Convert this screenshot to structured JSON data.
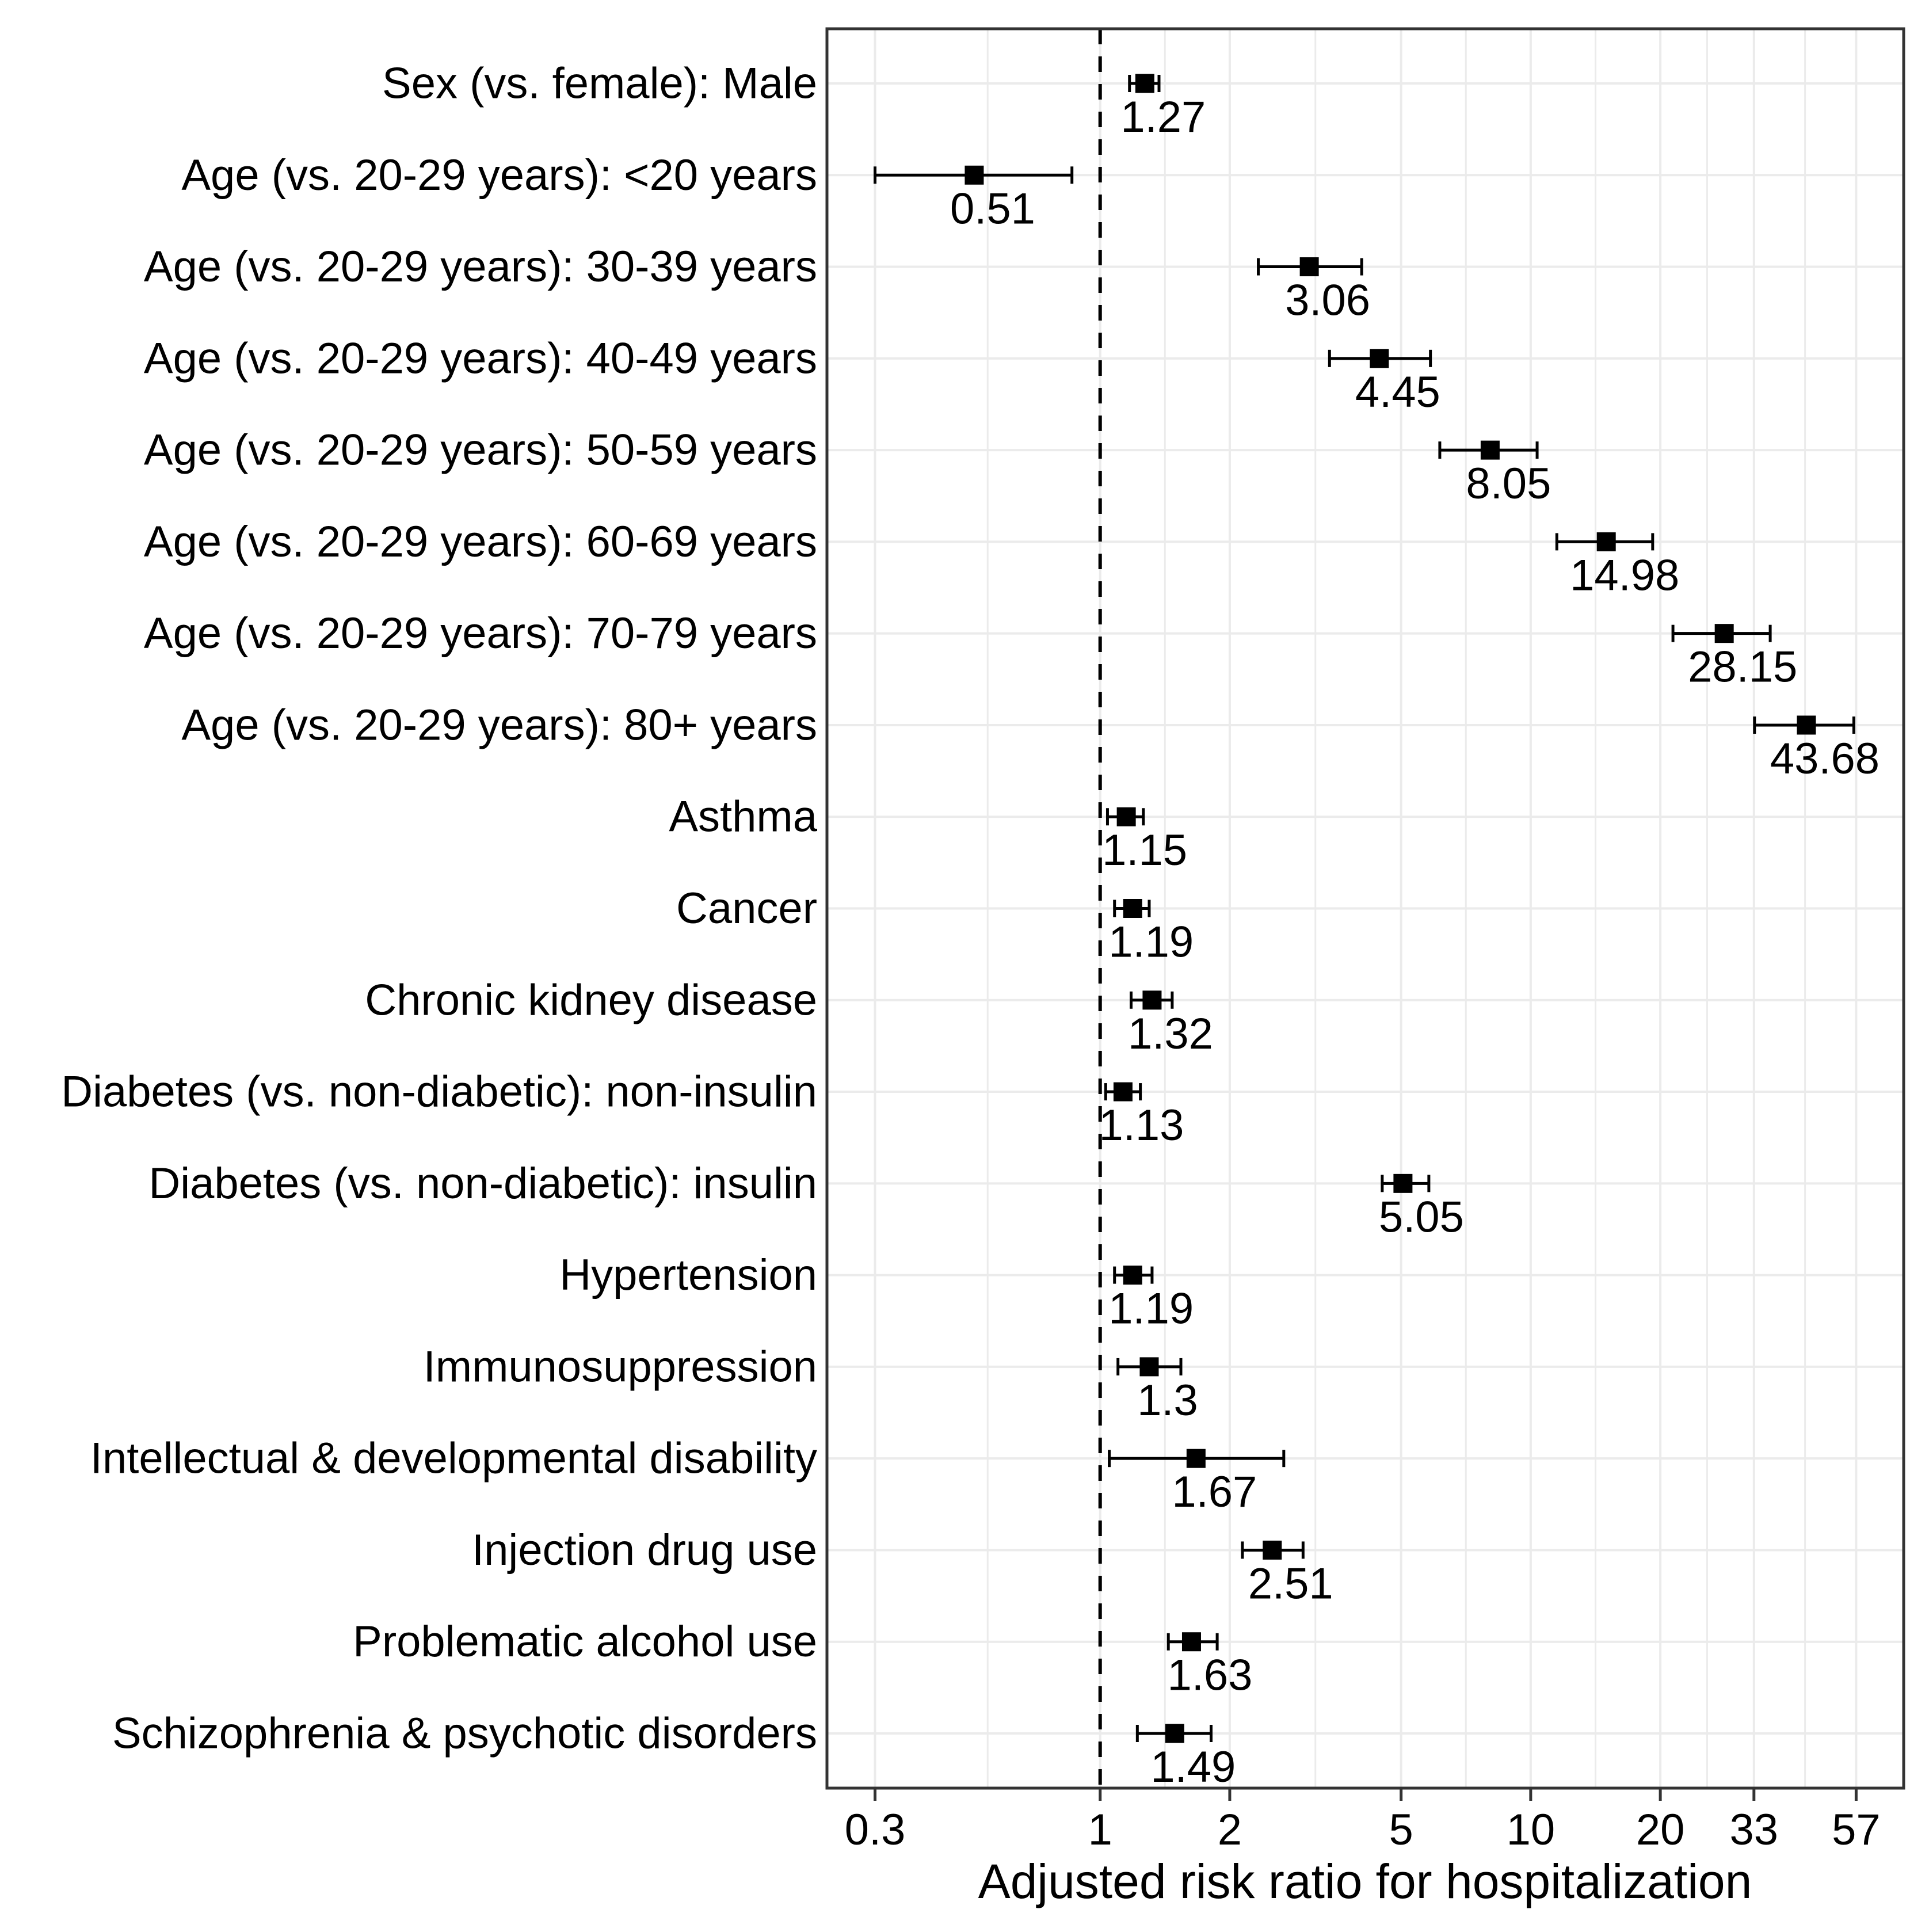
{
  "figure": {
    "background": "#ffffff"
  },
  "chart_data": {
    "type": "scatter",
    "variant": "forest-plot",
    "title": "",
    "xlabel": "Adjusted risk ratio for hospitalization",
    "ylabel": "",
    "x_scale": "log",
    "xlim": [
      0.232,
      73.5
    ],
    "x_major_ticks": [
      0.3,
      1,
      2,
      5,
      10,
      20,
      33,
      57
    ],
    "x_tick_labels": [
      "0.3",
      "1",
      "2",
      "5",
      "10",
      "20",
      "33",
      "57"
    ],
    "x_minor_gridlines": [
      0.548,
      1.414,
      3.162,
      7.071,
      14.142,
      25.69,
      43.37
    ],
    "reference_line_x": 1,
    "grid": true,
    "legend": false,
    "rows": [
      {
        "label": "Sex (vs. female): Male",
        "estimate": 1.27,
        "ci_low": 1.17,
        "ci_high": 1.37,
        "display": "1.27"
      },
      {
        "label": "Age (vs. 20-29 years): <20 years",
        "estimate": 0.51,
        "ci_low": 0.3,
        "ci_high": 0.86,
        "display": "0.51"
      },
      {
        "label": "Age (vs. 20-29 years): 30-39 years",
        "estimate": 3.06,
        "ci_low": 2.33,
        "ci_high": 4.05,
        "display": "3.06"
      },
      {
        "label": "Age (vs. 20-29 years): 40-49 years",
        "estimate": 4.45,
        "ci_low": 3.41,
        "ci_high": 5.85,
        "display": "4.45"
      },
      {
        "label": "Age (vs. 20-29 years): 50-59 years",
        "estimate": 8.05,
        "ci_low": 6.15,
        "ci_high": 10.35,
        "display": "8.05"
      },
      {
        "label": "Age (vs. 20-29 years): 60-69 years",
        "estimate": 14.98,
        "ci_low": 11.5,
        "ci_high": 19.2,
        "display": "14.98"
      },
      {
        "label": "Age (vs. 20-29 years): 70-79 years",
        "estimate": 28.15,
        "ci_low": 21.4,
        "ci_high": 36.0,
        "display": "28.15"
      },
      {
        "label": "Age (vs. 20-29 years): 80+ years",
        "estimate": 43.68,
        "ci_low": 33.1,
        "ci_high": 56.3,
        "display": "43.68"
      },
      {
        "label": "Asthma",
        "estimate": 1.15,
        "ci_low": 1.04,
        "ci_high": 1.26,
        "display": "1.15"
      },
      {
        "label": "Cancer",
        "estimate": 1.19,
        "ci_low": 1.08,
        "ci_high": 1.3,
        "display": "1.19"
      },
      {
        "label": "Chronic kidney disease",
        "estimate": 1.32,
        "ci_low": 1.18,
        "ci_high": 1.47,
        "display": "1.32"
      },
      {
        "label": "Diabetes (vs. non-diabetic): non-insulin",
        "estimate": 1.13,
        "ci_low": 1.03,
        "ci_high": 1.24,
        "display": "1.13"
      },
      {
        "label": "Diabetes (vs. non-diabetic): insulin",
        "estimate": 5.05,
        "ci_low": 4.52,
        "ci_high": 5.8,
        "display": "5.05"
      },
      {
        "label": "Hypertension",
        "estimate": 1.19,
        "ci_low": 1.08,
        "ci_high": 1.32,
        "display": "1.19"
      },
      {
        "label": "Immunosuppression",
        "estimate": 1.3,
        "ci_low": 1.1,
        "ci_high": 1.54,
        "display": "1.3"
      },
      {
        "label": "Intellectual & developmental disability",
        "estimate": 1.67,
        "ci_low": 1.05,
        "ci_high": 2.67,
        "display": "1.67"
      },
      {
        "label": "Injection drug use",
        "estimate": 2.51,
        "ci_low": 2.14,
        "ci_high": 2.96,
        "display": "2.51"
      },
      {
        "label": "Problematic alcohol use",
        "estimate": 1.63,
        "ci_low": 1.44,
        "ci_high": 1.87,
        "display": "1.63"
      },
      {
        "label": "Schizophrenia & psychotic disorders",
        "estimate": 1.49,
        "ci_low": 1.22,
        "ci_high": 1.81,
        "display": "1.49"
      }
    ],
    "colors": {
      "marker": "#000000",
      "error_bar": "#000000",
      "reference_line": "#000000",
      "gridline": "#ebebeb",
      "panel_border": "#333333",
      "text": "#000000",
      "background": "#ffffff"
    }
  }
}
